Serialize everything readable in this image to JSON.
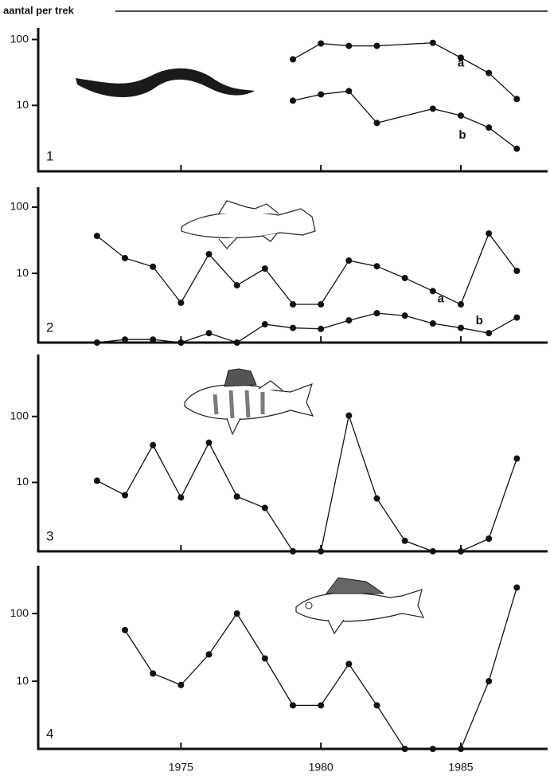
{
  "title": "aantal per trek",
  "chart_data": [
    {
      "type": "line",
      "label": "1",
      "log_scale": true,
      "xlim": [
        1969.9,
        1988.1
      ],
      "ylim": [
        1,
        150
      ],
      "yticks": [
        10,
        100
      ],
      "xticks": [
        1975,
        1980,
        1985
      ],
      "series": [
        {
          "name": "a",
          "color": "#111111",
          "x": [
            1979,
            1980,
            1981,
            1982,
            1984,
            1985,
            1986,
            1987
          ],
          "values": [
            50,
            87,
            80,
            80,
            89,
            53,
            31,
            12.5
          ]
        },
        {
          "name": "b",
          "color": "#111111",
          "x": [
            1979,
            1980,
            1981,
            1982,
            1984,
            1985,
            1986,
            1987
          ],
          "values": [
            11.8,
            14.7,
            16.5,
            5.4,
            8.9,
            7,
            4.6,
            2.2
          ]
        }
      ]
    },
    {
      "type": "line",
      "label": "2",
      "log_scale": true,
      "xlim": [
        1969.9,
        1988.1
      ],
      "ylim": [
        0.9,
        200
      ],
      "yticks": [
        10,
        100
      ],
      "xticks": [
        1975,
        1980,
        1985
      ],
      "series": [
        {
          "name": "a",
          "color": "#111111",
          "x": [
            1972,
            1973,
            1974,
            1975,
            1976,
            1977,
            1978,
            1979,
            1980,
            1981,
            1982,
            1983,
            1984,
            1985,
            1986,
            1987
          ],
          "values": [
            36.8,
            17,
            12.6,
            3.6,
            19.5,
            6.6,
            11.8,
            3.4,
            3.4,
            15.6,
            12.8,
            8.5,
            5.4,
            3.4,
            40,
            10.9
          ]
        },
        {
          "name": "b",
          "color": "#111111",
          "x": [
            1972,
            1973,
            1974,
            1975,
            1976,
            1977,
            1978,
            1979,
            1980,
            1981,
            1982,
            1983,
            1984,
            1985,
            1986,
            1987
          ],
          "values": [
            0,
            1,
            1,
            0,
            1.25,
            0,
            1.7,
            1.5,
            1.45,
            1.95,
            2.5,
            2.3,
            1.75,
            1.5,
            1.25,
            2.15
          ]
        }
      ]
    },
    {
      "type": "line",
      "label": "3",
      "log_scale": true,
      "xlim": [
        1969.9,
        1988.1
      ],
      "ylim": [
        0.9,
        870
      ],
      "yticks": [
        10,
        100
      ],
      "xticks": [
        1975,
        1980,
        1985
      ],
      "color": "#111111",
      "x": [
        1972,
        1973,
        1974,
        1975,
        1976,
        1977,
        1978,
        1979,
        1980,
        1981,
        1982,
        1983,
        1984,
        1985,
        1986,
        1987
      ],
      "values": [
        10.6,
        6.4,
        36.8,
        5.9,
        40,
        6.1,
        4.1,
        0,
        0,
        103,
        5.7,
        1.3,
        0,
        0,
        1.4,
        23
      ]
    },
    {
      "type": "line",
      "label": "4",
      "log_scale": true,
      "xlim": [
        1969.9,
        1988.1
      ],
      "ylim": [
        1,
        510
      ],
      "yticks": [
        10,
        100
      ],
      "xticks": [
        1975,
        1980,
        1985
      ],
      "color": "#111111",
      "x": [
        1973,
        1974,
        1975,
        1976,
        1977,
        1978,
        1979,
        1980,
        1981,
        1982,
        1983,
        1984,
        1985,
        1986,
        1987
      ],
      "values": [
        57,
        13,
        8.8,
        24.9,
        100,
        21.7,
        4.4,
        4.4,
        18,
        4.4,
        0,
        0,
        0,
        10,
        242
      ]
    }
  ]
}
